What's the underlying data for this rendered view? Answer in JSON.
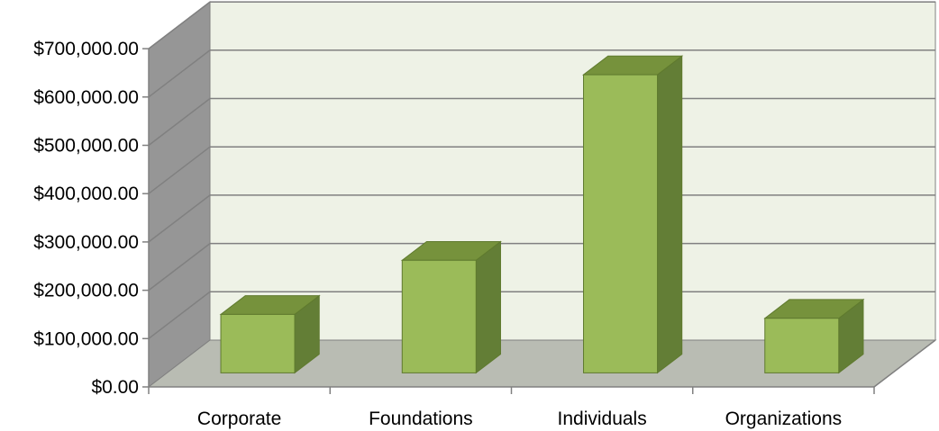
{
  "chart_data": {
    "type": "bar",
    "title": "",
    "xlabel": "",
    "ylabel": "",
    "categories": [
      "Corporate",
      "Foundations",
      "Individuals",
      "Organizations"
    ],
    "values": [
      121000,
      233000,
      617000,
      113000
    ],
    "ylim": [
      0,
      700000
    ],
    "y_tick_values": [
      0,
      100000,
      200000,
      300000,
      400000,
      500000,
      600000,
      700000
    ],
    "y_tick_labels": [
      "$0.00",
      "$100,000.00",
      "$200,000.00",
      "$300,000.00",
      "$400,000.00",
      "$500,000.00",
      "$600,000.00",
      "$700,000.00"
    ],
    "grid": true,
    "style": "3d-clustered-column",
    "colors": {
      "bar_front": "#9bbb59",
      "bar_top": "#76923c",
      "bar_side": "#637e36",
      "bar_edge": "#5f7a2e",
      "back_wall": "#eef2e6",
      "side_wall": "#969696",
      "floor": "#b9bcb3",
      "gridline": "#808080",
      "axis": "#808080"
    }
  }
}
